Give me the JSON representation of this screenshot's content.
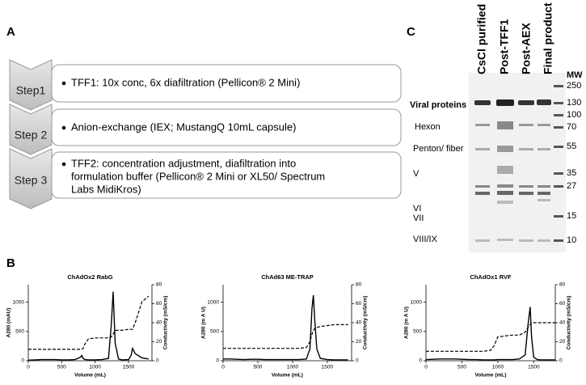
{
  "panels": {
    "a": "A",
    "b": "B",
    "c": "C"
  },
  "steps": [
    {
      "label": "Step1",
      "lines": [
        "TFF1: 10x conc, 6x diafiltration (Pellicon® 2 Mini)"
      ]
    },
    {
      "label": "Step 2",
      "lines": [
        "Anion-exchange (IEX; MustangQ 10mL capsule)"
      ]
    },
    {
      "label": "Step 3",
      "lines": [
        "TFF2: concentration adjustment, diafiltration into",
        "formulation buffer (Pellicon® 2 Mini or XL50/ Spectrum",
        "Labs MidiKros)"
      ]
    }
  ],
  "gel": {
    "lanes": [
      "CsCl purified",
      "Post-TFF1",
      "Post-AEX",
      "Final product"
    ],
    "mw_title": "MW",
    "mw": [
      250,
      130,
      100,
      70,
      55,
      35,
      27,
      15,
      10
    ],
    "section_title": "Viral proteins",
    "proteins": [
      "Hexon",
      "Penton/ fiber",
      "V",
      "VI",
      "VII",
      "VIII/IX"
    ]
  },
  "chart_data": [
    {
      "type": "line",
      "title": "ChAdOx2 RabG",
      "x_label": "Volume (mL)",
      "y_label": "A280 (mAU)",
      "y2_label": "Conductivity (mS/cm)",
      "xlim": [
        0,
        1850
      ],
      "xticks": [
        0,
        500,
        1000,
        1500
      ],
      "ylim": [
        0,
        1300
      ],
      "yticks": [
        0,
        500,
        1000
      ],
      "y2lim": [
        0,
        80
      ],
      "y2ticks": [
        0,
        20,
        40,
        60,
        80
      ],
      "x": [
        0,
        100,
        200,
        300,
        400,
        500,
        600,
        700,
        780,
        800,
        820,
        850,
        900,
        1000,
        1100,
        1200,
        1240,
        1270,
        1300,
        1350,
        1400,
        1500,
        1540,
        1560,
        1600,
        1700,
        1800
      ],
      "series": [
        {
          "color": "#000000",
          "dash": false,
          "values": [
            10,
            15,
            20,
            20,
            20,
            15,
            15,
            20,
            60,
            90,
            40,
            20,
            15,
            15,
            20,
            40,
            600,
            1180,
            300,
            30,
            15,
            20,
            100,
            210,
            120,
            50,
            30
          ]
        },
        {
          "color": "#000000",
          "dash": true,
          "axis": "y2",
          "values": [
            12,
            12,
            12,
            12,
            12,
            12,
            12,
            12,
            12,
            12,
            13,
            18,
            23,
            24,
            24,
            24,
            25,
            28,
            32,
            32,
            32,
            33,
            33,
            33,
            40,
            62,
            68
          ]
        }
      ]
    },
    {
      "type": "line",
      "title": "ChAd63 ME-TRAP",
      "x_label": "Volume (mL)",
      "y_label": "A280 (m A U)",
      "y2_label": "Conductivity (mS/cm)",
      "xlim": [
        0,
        1850
      ],
      "xticks": [
        0,
        500,
        1000,
        1500
      ],
      "ylim": [
        0,
        1300
      ],
      "yticks": [
        0,
        500,
        1000
      ],
      "y2lim": [
        0,
        80
      ],
      "y2ticks": [
        0,
        20,
        40,
        60,
        80
      ],
      "x": [
        0,
        100,
        200,
        300,
        400,
        500,
        600,
        700,
        800,
        900,
        1000,
        1100,
        1200,
        1250,
        1280,
        1300,
        1320,
        1350,
        1400,
        1500,
        1600,
        1700,
        1800
      ],
      "series": [
        {
          "color": "#000000",
          "dash": false,
          "values": [
            30,
            30,
            25,
            20,
            25,
            25,
            20,
            20,
            20,
            20,
            20,
            20,
            30,
            200,
            900,
            1120,
            700,
            200,
            40,
            20,
            15,
            15,
            15
          ]
        },
        {
          "color": "#000000",
          "dash": true,
          "axis": "y2",
          "values": [
            13,
            13,
            13,
            13,
            13,
            13,
            13,
            13,
            13,
            13,
            13,
            13,
            14,
            20,
            28,
            32,
            34,
            35,
            36,
            37,
            38,
            38,
            38
          ]
        }
      ]
    },
    {
      "type": "line",
      "title": "ChAdOx1 RVF",
      "x_label": "Volume (mL)",
      "y_label": "A280 (m A U)",
      "y2_label": "Conductivity (mS/cm)",
      "xlim": [
        0,
        1800
      ],
      "xticks": [
        0,
        500,
        1000,
        1500
      ],
      "ylim": [
        0,
        1300
      ],
      "yticks": [
        0,
        500,
        1000
      ],
      "y2lim": [
        0,
        80
      ],
      "y2ticks": [
        0,
        20,
        40,
        60,
        80
      ],
      "x": [
        0,
        100,
        200,
        300,
        400,
        500,
        600,
        700,
        800,
        900,
        950,
        1000,
        1100,
        1200,
        1300,
        1380,
        1420,
        1450,
        1470,
        1500,
        1550,
        1600,
        1700,
        1800
      ],
      "series": [
        {
          "color": "#000000",
          "dash": false,
          "values": [
            20,
            25,
            30,
            30,
            30,
            25,
            20,
            20,
            15,
            15,
            15,
            20,
            20,
            20,
            30,
            100,
            600,
            920,
            400,
            60,
            20,
            15,
            15,
            15
          ]
        },
        {
          "color": "#000000",
          "dash": true,
          "axis": "y2",
          "values": [
            10,
            10,
            10,
            10,
            10,
            10,
            10,
            10,
            10,
            11,
            16,
            25,
            26,
            27,
            27,
            30,
            35,
            38,
            40,
            40,
            40,
            40,
            40,
            40
          ]
        }
      ]
    }
  ]
}
